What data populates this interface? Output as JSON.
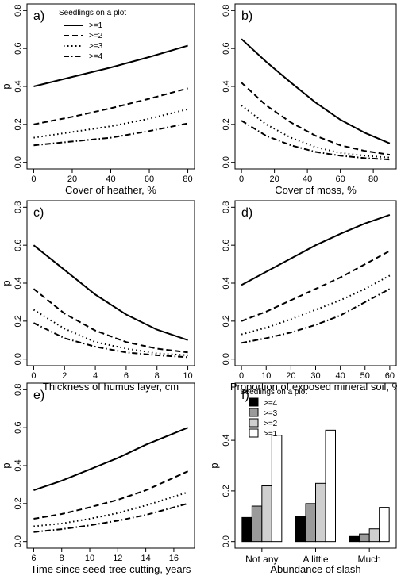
{
  "figure_title": "",
  "chart_data": [
    {
      "type": "line",
      "panel_label": "a)",
      "title": "",
      "xlabel": "Cover of heather, %",
      "ylabel": "p",
      "xlim": [
        0,
        80
      ],
      "ylim": [
        0,
        0.8
      ],
      "xticks": [
        0,
        20,
        40,
        60,
        80
      ],
      "yticks": [
        0.0,
        0.2,
        0.4,
        0.6,
        0.8
      ],
      "grid": false,
      "legend": {
        "title": "Seedlings on a plot",
        "position": "top-left"
      },
      "series": [
        {
          "name": ">=1",
          "style": "solid",
          "x": [
            0,
            20,
            40,
            60,
            80
          ],
          "y": [
            0.4,
            0.45,
            0.5,
            0.555,
            0.615
          ]
        },
        {
          "name": ">=2",
          "style": "dashed",
          "x": [
            0,
            20,
            40,
            60,
            80
          ],
          "y": [
            0.2,
            0.24,
            0.285,
            0.335,
            0.39
          ]
        },
        {
          "name": ">=3",
          "style": "dotted",
          "x": [
            0,
            20,
            40,
            60,
            80
          ],
          "y": [
            0.13,
            0.16,
            0.19,
            0.23,
            0.28
          ]
        },
        {
          "name": ">=4",
          "style": "dashdot",
          "x": [
            0,
            20,
            40,
            60,
            80
          ],
          "y": [
            0.09,
            0.11,
            0.13,
            0.165,
            0.205
          ]
        }
      ]
    },
    {
      "type": "line",
      "panel_label": "b)",
      "title": "",
      "xlabel": "Cover of moss, %",
      "ylabel": "",
      "xlim": [
        0,
        90
      ],
      "ylim": [
        0,
        0.8
      ],
      "xticks": [
        0,
        20,
        40,
        60,
        80
      ],
      "yticks": [
        0.0,
        0.2,
        0.4,
        0.6,
        0.8
      ],
      "grid": false,
      "series": [
        {
          "name": ">=1",
          "style": "solid",
          "x": [
            0,
            15,
            30,
            45,
            60,
            75,
            90
          ],
          "y": [
            0.65,
            0.53,
            0.42,
            0.315,
            0.225,
            0.155,
            0.1
          ]
        },
        {
          "name": ">=2",
          "style": "dashed",
          "x": [
            0,
            15,
            30,
            45,
            60,
            75,
            90
          ],
          "y": [
            0.42,
            0.3,
            0.21,
            0.14,
            0.09,
            0.06,
            0.04
          ]
        },
        {
          "name": ">=3",
          "style": "dotted",
          "x": [
            0,
            15,
            30,
            45,
            60,
            75,
            90
          ],
          "y": [
            0.3,
            0.2,
            0.13,
            0.08,
            0.05,
            0.035,
            0.025
          ]
        },
        {
          "name": ">=4",
          "style": "dashdot",
          "x": [
            0,
            15,
            30,
            45,
            60,
            75,
            90
          ],
          "y": [
            0.22,
            0.14,
            0.09,
            0.055,
            0.035,
            0.022,
            0.015
          ]
        }
      ]
    },
    {
      "type": "line",
      "panel_label": "c)",
      "title": "",
      "xlabel": "Thickness of humus layer, cm",
      "ylabel": "p",
      "xlim": [
        0,
        10
      ],
      "ylim": [
        0,
        0.8
      ],
      "xticks": [
        0,
        2,
        4,
        6,
        8,
        10
      ],
      "yticks": [
        0.0,
        0.2,
        0.4,
        0.6,
        0.8
      ],
      "grid": false,
      "series": [
        {
          "name": ">=1",
          "style": "solid",
          "x": [
            0,
            2,
            4,
            6,
            8,
            10
          ],
          "y": [
            0.6,
            0.47,
            0.34,
            0.235,
            0.155,
            0.1
          ]
        },
        {
          "name": ">=2",
          "style": "dashed",
          "x": [
            0,
            2,
            4,
            6,
            8,
            10
          ],
          "y": [
            0.37,
            0.24,
            0.15,
            0.09,
            0.055,
            0.035
          ]
        },
        {
          "name": ">=3",
          "style": "dotted",
          "x": [
            0,
            2,
            4,
            6,
            8,
            10
          ],
          "y": [
            0.26,
            0.16,
            0.09,
            0.055,
            0.03,
            0.02
          ]
        },
        {
          "name": ">=4",
          "style": "dashdot",
          "x": [
            0,
            2,
            4,
            6,
            8,
            10
          ],
          "y": [
            0.19,
            0.11,
            0.065,
            0.035,
            0.02,
            0.01
          ]
        }
      ]
    },
    {
      "type": "line",
      "panel_label": "d)",
      "title": "",
      "xlabel": "Proportion of exposed mineral soil, %",
      "ylabel": "",
      "xlim": [
        0,
        60
      ],
      "ylim": [
        0,
        0.8
      ],
      "xticks": [
        0,
        10,
        20,
        30,
        40,
        50,
        60
      ],
      "yticks": [
        0.0,
        0.2,
        0.4,
        0.6,
        0.8
      ],
      "grid": false,
      "series": [
        {
          "name": ">=1",
          "style": "solid",
          "x": [
            0,
            10,
            20,
            30,
            40,
            50,
            60
          ],
          "y": [
            0.39,
            0.46,
            0.53,
            0.6,
            0.66,
            0.715,
            0.76
          ]
        },
        {
          "name": ">=2",
          "style": "dashed",
          "x": [
            0,
            10,
            20,
            30,
            40,
            50,
            60
          ],
          "y": [
            0.2,
            0.25,
            0.31,
            0.37,
            0.43,
            0.5,
            0.57
          ]
        },
        {
          "name": ">=3",
          "style": "dotted",
          "x": [
            0,
            10,
            20,
            30,
            40,
            50,
            60
          ],
          "y": [
            0.13,
            0.165,
            0.21,
            0.26,
            0.31,
            0.37,
            0.44
          ]
        },
        {
          "name": ">=4",
          "style": "dashdot",
          "x": [
            0,
            10,
            20,
            30,
            40,
            50,
            60
          ],
          "y": [
            0.085,
            0.11,
            0.14,
            0.18,
            0.23,
            0.3,
            0.37
          ]
        }
      ]
    },
    {
      "type": "line",
      "panel_label": "e)",
      "title": "",
      "xlabel": "Time since seed-tree cutting, years",
      "ylabel": "p",
      "xlim": [
        6,
        17
      ],
      "ylim": [
        0,
        0.8
      ],
      "xticks": [
        6,
        8,
        10,
        12,
        14,
        16
      ],
      "yticks": [
        0.0,
        0.2,
        0.4,
        0.6,
        0.8
      ],
      "grid": false,
      "series": [
        {
          "name": ">=1",
          "style": "solid",
          "x": [
            6,
            8,
            10,
            12,
            14,
            17
          ],
          "y": [
            0.27,
            0.32,
            0.38,
            0.44,
            0.51,
            0.6
          ]
        },
        {
          "name": ">=2",
          "style": "dashed",
          "x": [
            6,
            8,
            10,
            12,
            14,
            17
          ],
          "y": [
            0.12,
            0.145,
            0.18,
            0.22,
            0.27,
            0.37
          ]
        },
        {
          "name": ">=3",
          "style": "dotted",
          "x": [
            6,
            8,
            10,
            12,
            14,
            17
          ],
          "y": [
            0.08,
            0.095,
            0.12,
            0.15,
            0.19,
            0.26
          ]
        },
        {
          "name": ">=4",
          "style": "dashdot",
          "x": [
            6,
            8,
            10,
            12,
            14,
            17
          ],
          "y": [
            0.05,
            0.065,
            0.085,
            0.11,
            0.14,
            0.2
          ]
        }
      ]
    },
    {
      "type": "bar",
      "panel_label": "f)",
      "title": "",
      "xlabel": "Abundance of slash",
      "ylabel": "p",
      "ylim": [
        0,
        0.6
      ],
      "yticks": [
        0.0,
        0.2,
        0.4
      ],
      "grid": false,
      "legend": {
        "title": "Seedlings on a plot",
        "position": "top-left"
      },
      "categories": [
        "Not any",
        "A little",
        "Much"
      ],
      "series": [
        {
          "name": ">=4",
          "color": "#000000",
          "values": [
            0.095,
            0.1,
            0.02
          ]
        },
        {
          "name": ">=3",
          "color": "#9a9a9a",
          "values": [
            0.14,
            0.15,
            0.03
          ]
        },
        {
          "name": ">=2",
          "color": "#cfcfcf",
          "values": [
            0.22,
            0.23,
            0.05
          ]
        },
        {
          "name": ">=1",
          "color": "#ffffff",
          "values": [
            0.42,
            0.44,
            0.135
          ]
        }
      ]
    }
  ]
}
